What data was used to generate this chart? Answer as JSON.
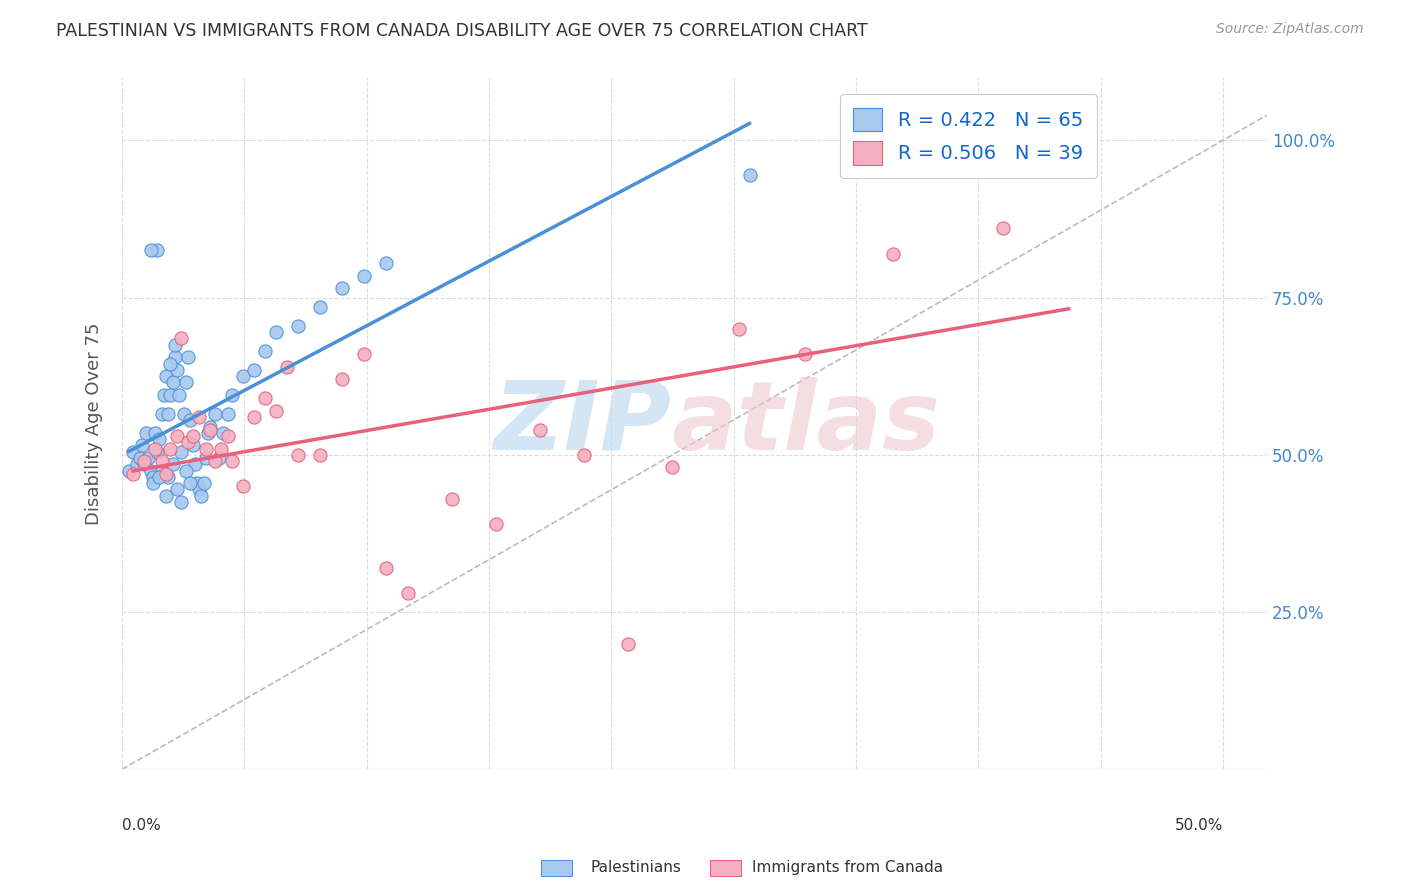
{
  "title": "PALESTINIAN VS IMMIGRANTS FROM CANADA DISABILITY AGE OVER 75 CORRELATION CHART",
  "source": "Source: ZipAtlas.com",
  "ylabel": "Disability Age Over 75",
  "ytick_labels": [
    "",
    "25.0%",
    "50.0%",
    "75.0%",
    "100.0%"
  ],
  "ytick_positions": [
    0.0,
    0.25,
    0.5,
    0.75,
    1.0
  ],
  "xlim": [
    0.0,
    0.52
  ],
  "ylim": [
    0.0,
    1.1
  ],
  "blue_color": "#a8c8ee",
  "pink_color": "#f4b0c0",
  "blue_line_color": "#4a90d9",
  "pink_line_color": "#e8607a",
  "diag_line_color": "#bbbbbb",
  "legend_blue_label": "R = 0.422   N = 65",
  "legend_pink_label": "R = 0.506   N = 39",
  "background_color": "#ffffff",
  "grid_color": "#dddddd",
  "palestinians_x": [
    0.003,
    0.005,
    0.007,
    0.008,
    0.009,
    0.01,
    0.011,
    0.012,
    0.013,
    0.014,
    0.015,
    0.016,
    0.017,
    0.018,
    0.019,
    0.02,
    0.021,
    0.022,
    0.023,
    0.024,
    0.025,
    0.026,
    0.027,
    0.028,
    0.029,
    0.03,
    0.031,
    0.032,
    0.033,
    0.034,
    0.035,
    0.036,
    0.037,
    0.038,
    0.039,
    0.04,
    0.042,
    0.044,
    0.046,
    0.048,
    0.05,
    0.055,
    0.06,
    0.065,
    0.07,
    0.08,
    0.09,
    0.1,
    0.11,
    0.12,
    0.014,
    0.018,
    0.021,
    0.023,
    0.025,
    0.027,
    0.029,
    0.031,
    0.016,
    0.013,
    0.02,
    0.017,
    0.022,
    0.024,
    0.285
  ],
  "palestinians_y": [
    0.475,
    0.505,
    0.485,
    0.495,
    0.515,
    0.485,
    0.535,
    0.495,
    0.475,
    0.465,
    0.535,
    0.505,
    0.525,
    0.565,
    0.595,
    0.625,
    0.565,
    0.595,
    0.615,
    0.655,
    0.635,
    0.595,
    0.505,
    0.565,
    0.615,
    0.655,
    0.555,
    0.515,
    0.485,
    0.455,
    0.445,
    0.435,
    0.455,
    0.495,
    0.535,
    0.545,
    0.565,
    0.495,
    0.535,
    0.565,
    0.595,
    0.625,
    0.635,
    0.665,
    0.695,
    0.705,
    0.735,
    0.765,
    0.785,
    0.805,
    0.455,
    0.475,
    0.465,
    0.485,
    0.445,
    0.425,
    0.475,
    0.455,
    0.825,
    0.825,
    0.435,
    0.465,
    0.645,
    0.675,
    0.945
  ],
  "immigrants_x": [
    0.005,
    0.01,
    0.015,
    0.018,
    0.02,
    0.022,
    0.025,
    0.027,
    0.03,
    0.032,
    0.035,
    0.038,
    0.04,
    0.042,
    0.045,
    0.048,
    0.05,
    0.055,
    0.06,
    0.065,
    0.07,
    0.075,
    0.08,
    0.09,
    0.1,
    0.11,
    0.12,
    0.13,
    0.15,
    0.17,
    0.19,
    0.21,
    0.23,
    0.25,
    0.28,
    0.31,
    0.35,
    0.4,
    0.43
  ],
  "immigrants_y": [
    0.47,
    0.49,
    0.51,
    0.49,
    0.47,
    0.51,
    0.53,
    0.685,
    0.52,
    0.53,
    0.56,
    0.51,
    0.54,
    0.49,
    0.51,
    0.53,
    0.49,
    0.45,
    0.56,
    0.59,
    0.57,
    0.64,
    0.5,
    0.5,
    0.62,
    0.66,
    0.32,
    0.28,
    0.43,
    0.39,
    0.54,
    0.5,
    0.2,
    0.48,
    0.7,
    0.66,
    0.82,
    0.86,
    0.96
  ]
}
